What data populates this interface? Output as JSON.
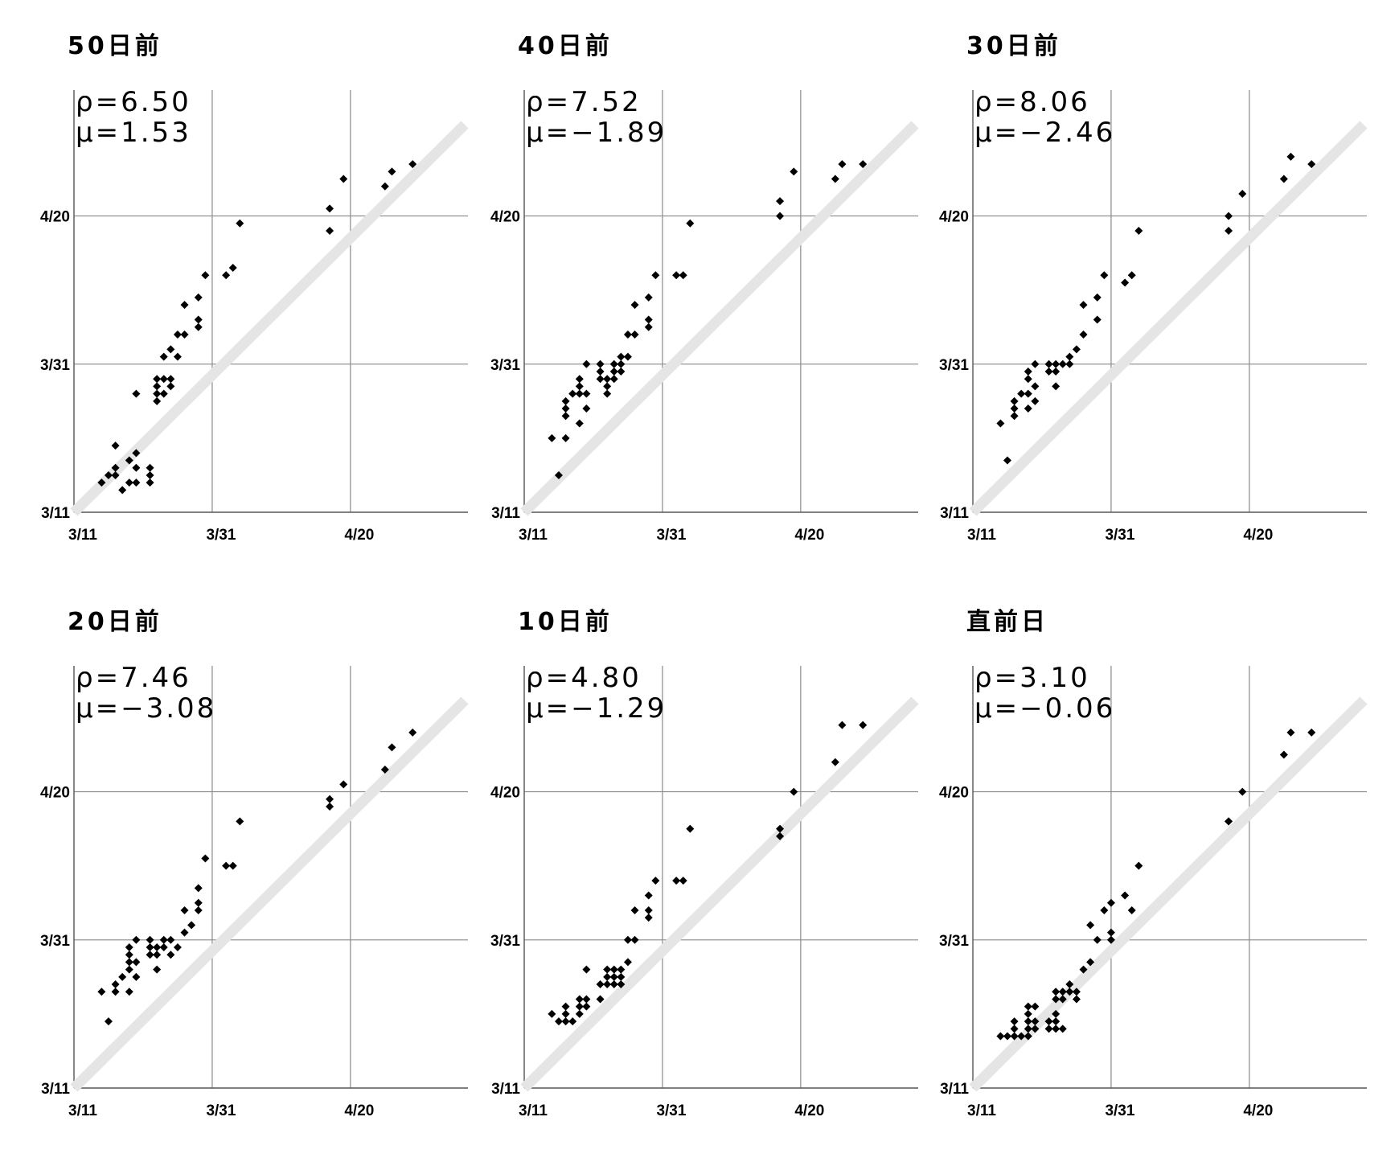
{
  "axis_ticks": [
    "3/11",
    "3/31",
    "4/20"
  ],
  "colors": {
    "grid": "#8a8a8a",
    "diagonal": "#e5e5e5",
    "points": "#000000"
  },
  "chart_data": [
    {
      "type": "scatter",
      "title": "50日前",
      "rho": "ρ=6.50",
      "mu": "μ=1.53",
      "xlim": [
        0,
        57
      ],
      "ylim": [
        0,
        57
      ],
      "points": [
        [
          4,
          4
        ],
        [
          5,
          5
        ],
        [
          6,
          5
        ],
        [
          6,
          6
        ],
        [
          6,
          9
        ],
        [
          7,
          3
        ],
        [
          8,
          4
        ],
        [
          8,
          7
        ],
        [
          9,
          4
        ],
        [
          9,
          6
        ],
        [
          9,
          8
        ],
        [
          9,
          16
        ],
        [
          11,
          4
        ],
        [
          11,
          5
        ],
        [
          11,
          6
        ],
        [
          12,
          15
        ],
        [
          12,
          16
        ],
        [
          12,
          17
        ],
        [
          12,
          18
        ],
        [
          13,
          16
        ],
        [
          13,
          18
        ],
        [
          13,
          21
        ],
        [
          14,
          17
        ],
        [
          14,
          18
        ],
        [
          14,
          22
        ],
        [
          15,
          21
        ],
        [
          15,
          24
        ],
        [
          16,
          24
        ],
        [
          16,
          28
        ],
        [
          18,
          25
        ],
        [
          18,
          26
        ],
        [
          18,
          29
        ],
        [
          19,
          32
        ],
        [
          22,
          32
        ],
        [
          23,
          33
        ],
        [
          24,
          39
        ],
        [
          37,
          38
        ],
        [
          37,
          41
        ],
        [
          39,
          45
        ],
        [
          45,
          44
        ],
        [
          46,
          46
        ],
        [
          49,
          47
        ]
      ]
    },
    {
      "type": "scatter",
      "title": "40日前",
      "rho": "ρ=7.52",
      "mu": "μ=−1.89",
      "xlim": [
        0,
        57
      ],
      "ylim": [
        0,
        57
      ],
      "points": [
        [
          4,
          10
        ],
        [
          5,
          5
        ],
        [
          6,
          10
        ],
        [
          6,
          13
        ],
        [
          6,
          14
        ],
        [
          6,
          15
        ],
        [
          7,
          16
        ],
        [
          8,
          12
        ],
        [
          8,
          16
        ],
        [
          8,
          17
        ],
        [
          8,
          18
        ],
        [
          9,
          14
        ],
        [
          9,
          16
        ],
        [
          9,
          20
        ],
        [
          11,
          18
        ],
        [
          11,
          19
        ],
        [
          11,
          20
        ],
        [
          12,
          16
        ],
        [
          12,
          17
        ],
        [
          12,
          18
        ],
        [
          13,
          18
        ],
        [
          13,
          19
        ],
        [
          13,
          20
        ],
        [
          14,
          19
        ],
        [
          14,
          20
        ],
        [
          14,
          21
        ],
        [
          15,
          21
        ],
        [
          15,
          24
        ],
        [
          16,
          24
        ],
        [
          16,
          28
        ],
        [
          18,
          25
        ],
        [
          18,
          26
        ],
        [
          18,
          29
        ],
        [
          19,
          32
        ],
        [
          22,
          32
        ],
        [
          23,
          32
        ],
        [
          24,
          39
        ],
        [
          37,
          40
        ],
        [
          37,
          42
        ],
        [
          39,
          46
        ],
        [
          45,
          45
        ],
        [
          46,
          47
        ],
        [
          49,
          47
        ]
      ]
    },
    {
      "type": "scatter",
      "title": "30日前",
      "rho": "ρ=8.06",
      "mu": "μ=−2.46",
      "xlim": [
        0,
        57
      ],
      "ylim": [
        0,
        57
      ],
      "points": [
        [
          4,
          12
        ],
        [
          5,
          7
        ],
        [
          6,
          13
        ],
        [
          6,
          14
        ],
        [
          6,
          15
        ],
        [
          7,
          16
        ],
        [
          8,
          14
        ],
        [
          8,
          16
        ],
        [
          8,
          18
        ],
        [
          8,
          19
        ],
        [
          9,
          15
        ],
        [
          9,
          17
        ],
        [
          9,
          20
        ],
        [
          11,
          19
        ],
        [
          11,
          20
        ],
        [
          12,
          17
        ],
        [
          12,
          19
        ],
        [
          12,
          20
        ],
        [
          13,
          20
        ],
        [
          14,
          20
        ],
        [
          14,
          21
        ],
        [
          15,
          22
        ],
        [
          16,
          24
        ],
        [
          16,
          28
        ],
        [
          18,
          26
        ],
        [
          18,
          29
        ],
        [
          19,
          32
        ],
        [
          22,
          31
        ],
        [
          23,
          32
        ],
        [
          24,
          38
        ],
        [
          37,
          38
        ],
        [
          37,
          40
        ],
        [
          39,
          43
        ],
        [
          45,
          45
        ],
        [
          46,
          48
        ],
        [
          49,
          47
        ]
      ]
    },
    {
      "type": "scatter",
      "title": "20日前",
      "rho": "ρ=7.46",
      "mu": "μ=−3.08",
      "xlim": [
        0,
        57
      ],
      "ylim": [
        0,
        57
      ],
      "points": [
        [
          4,
          13
        ],
        [
          5,
          9
        ],
        [
          6,
          13
        ],
        [
          6,
          14
        ],
        [
          7,
          15
        ],
        [
          8,
          13
        ],
        [
          8,
          16
        ],
        [
          8,
          17
        ],
        [
          8,
          18
        ],
        [
          8,
          19
        ],
        [
          9,
          15
        ],
        [
          9,
          17
        ],
        [
          9,
          20
        ],
        [
          11,
          18
        ],
        [
          11,
          19
        ],
        [
          11,
          20
        ],
        [
          12,
          16
        ],
        [
          12,
          18
        ],
        [
          12,
          19
        ],
        [
          13,
          19
        ],
        [
          13,
          20
        ],
        [
          14,
          18
        ],
        [
          14,
          20
        ],
        [
          15,
          19
        ],
        [
          16,
          21
        ],
        [
          16,
          24
        ],
        [
          17,
          22
        ],
        [
          18,
          24
        ],
        [
          18,
          25
        ],
        [
          18,
          27
        ],
        [
          19,
          31
        ],
        [
          22,
          30
        ],
        [
          23,
          30
        ],
        [
          24,
          36
        ],
        [
          37,
          38
        ],
        [
          37,
          39
        ],
        [
          39,
          41
        ],
        [
          45,
          43
        ],
        [
          46,
          46
        ],
        [
          49,
          48
        ]
      ]
    },
    {
      "type": "scatter",
      "title": "10日前",
      "rho": "ρ=4.80",
      "mu": "μ=−1.29",
      "xlim": [
        0,
        57
      ],
      "ylim": [
        0,
        57
      ],
      "points": [
        [
          4,
          10
        ],
        [
          5,
          9
        ],
        [
          6,
          9
        ],
        [
          6,
          10
        ],
        [
          6,
          11
        ],
        [
          7,
          9
        ],
        [
          8,
          10
        ],
        [
          8,
          11
        ],
        [
          8,
          12
        ],
        [
          9,
          11
        ],
        [
          9,
          12
        ],
        [
          9,
          16
        ],
        [
          11,
          12
        ],
        [
          11,
          14
        ],
        [
          12,
          14
        ],
        [
          12,
          15
        ],
        [
          12,
          16
        ],
        [
          13,
          14
        ],
        [
          13,
          15
        ],
        [
          13,
          16
        ],
        [
          14,
          14
        ],
        [
          14,
          15
        ],
        [
          14,
          16
        ],
        [
          15,
          17
        ],
        [
          15,
          20
        ],
        [
          16,
          20
        ],
        [
          16,
          24
        ],
        [
          18,
          23
        ],
        [
          18,
          24
        ],
        [
          18,
          26
        ],
        [
          19,
          28
        ],
        [
          22,
          28
        ],
        [
          23,
          28
        ],
        [
          24,
          35
        ],
        [
          37,
          34
        ],
        [
          37,
          35
        ],
        [
          39,
          40
        ],
        [
          45,
          44
        ],
        [
          46,
          49
        ],
        [
          49,
          49
        ]
      ]
    },
    {
      "type": "scatter",
      "title": "直前日",
      "rho": "ρ=3.10",
      "mu": "μ=−0.06",
      "xlim": [
        0,
        57
      ],
      "ylim": [
        0,
        57
      ],
      "points": [
        [
          4,
          7
        ],
        [
          5,
          7
        ],
        [
          6,
          7
        ],
        [
          6,
          8
        ],
        [
          6,
          9
        ],
        [
          7,
          7
        ],
        [
          8,
          7
        ],
        [
          8,
          8
        ],
        [
          8,
          9
        ],
        [
          8,
          10
        ],
        [
          8,
          11
        ],
        [
          9,
          8
        ],
        [
          9,
          9
        ],
        [
          9,
          11
        ],
        [
          11,
          8
        ],
        [
          11,
          9
        ],
        [
          12,
          8
        ],
        [
          12,
          9
        ],
        [
          12,
          10
        ],
        [
          12,
          12
        ],
        [
          12,
          13
        ],
        [
          13,
          8
        ],
        [
          13,
          12
        ],
        [
          13,
          13
        ],
        [
          14,
          13
        ],
        [
          14,
          14
        ],
        [
          15,
          12
        ],
        [
          15,
          13
        ],
        [
          16,
          16
        ],
        [
          17,
          17
        ],
        [
          17,
          22
        ],
        [
          18,
          20
        ],
        [
          19,
          24
        ],
        [
          20,
          25
        ],
        [
          20,
          20
        ],
        [
          20,
          21
        ],
        [
          22,
          26
        ],
        [
          23,
          24
        ],
        [
          24,
          30
        ],
        [
          37,
          36
        ],
        [
          37,
          36
        ],
        [
          39,
          40
        ],
        [
          45,
          45
        ],
        [
          46,
          48
        ],
        [
          49,
          48
        ]
      ]
    }
  ]
}
